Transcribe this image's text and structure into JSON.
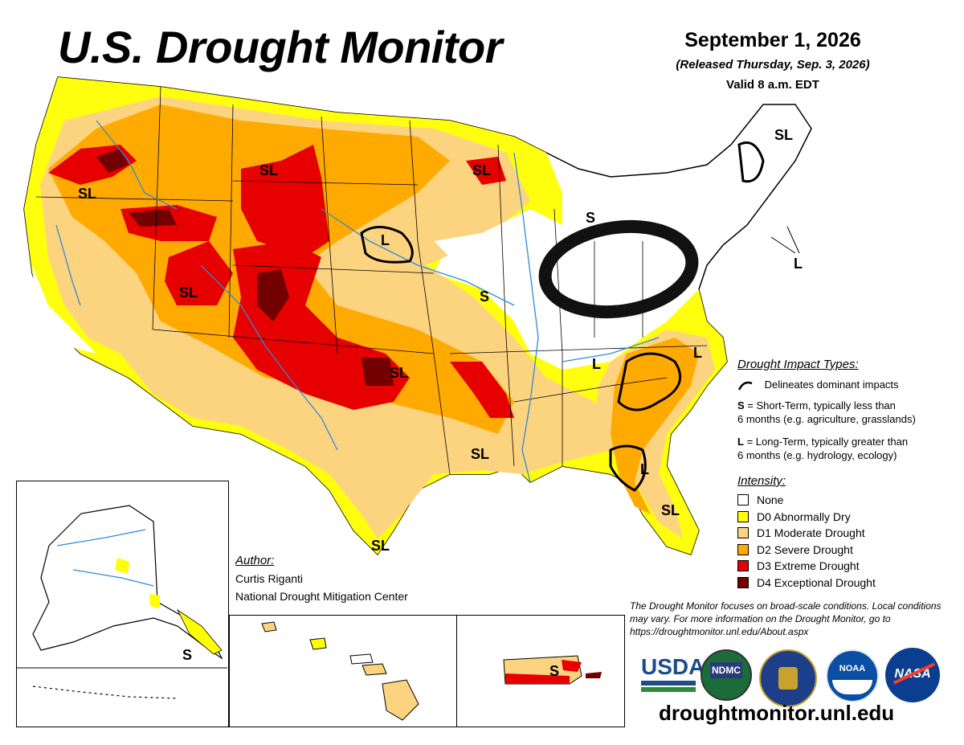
{
  "header": {
    "title": "U.S. Drought Monitor",
    "date": "September 1, 2026",
    "released": "(Released Thursday, Sep. 3, 2026)",
    "valid": "Valid 8 a.m. EDT"
  },
  "impact_types": {
    "heading": "Drought Impact Types:",
    "delineates": "Delineates dominant impacts",
    "short_key": "S",
    "short_desc": " = Short-Term, typically less than",
    "short_desc2": "6 months (e.g. agriculture, grasslands)",
    "long_key": "L",
    "long_desc": " = Long-Term, typically greater than",
    "long_desc2": "6 months (e.g. hydrology, ecology)"
  },
  "intensity": {
    "heading": "Intensity:",
    "levels": [
      {
        "label": "None",
        "color": "#ffffff"
      },
      {
        "label": "D0 Abnormally Dry",
        "color": "#ffff00"
      },
      {
        "label": "D1 Moderate Drought",
        "color": "#fcd37f"
      },
      {
        "label": "D2 Severe Drought",
        "color": "#ffaa00"
      },
      {
        "label": "D3 Extreme Drought",
        "color": "#e60000"
      },
      {
        "label": "D4 Exceptional Drought",
        "color": "#730000"
      }
    ]
  },
  "author": {
    "heading": "Author:",
    "name": "Curtis Riganti",
    "org": "National Drought Mitigation Center"
  },
  "disclaimer": "The Drought Monitor focuses on broad-scale conditions. Local conditions may vary. For more information on the Drought Monitor, go to https://droughtmonitor.unl.edu/About.aspx",
  "url": "droughtmonitor.unl.edu",
  "logos": {
    "usda": "USDA",
    "ndmc": "NDMC",
    "noaa": "NOAA",
    "nasa": "NASA"
  },
  "map_labels": {
    "sl": "SL",
    "s": "S",
    "l": "L"
  }
}
